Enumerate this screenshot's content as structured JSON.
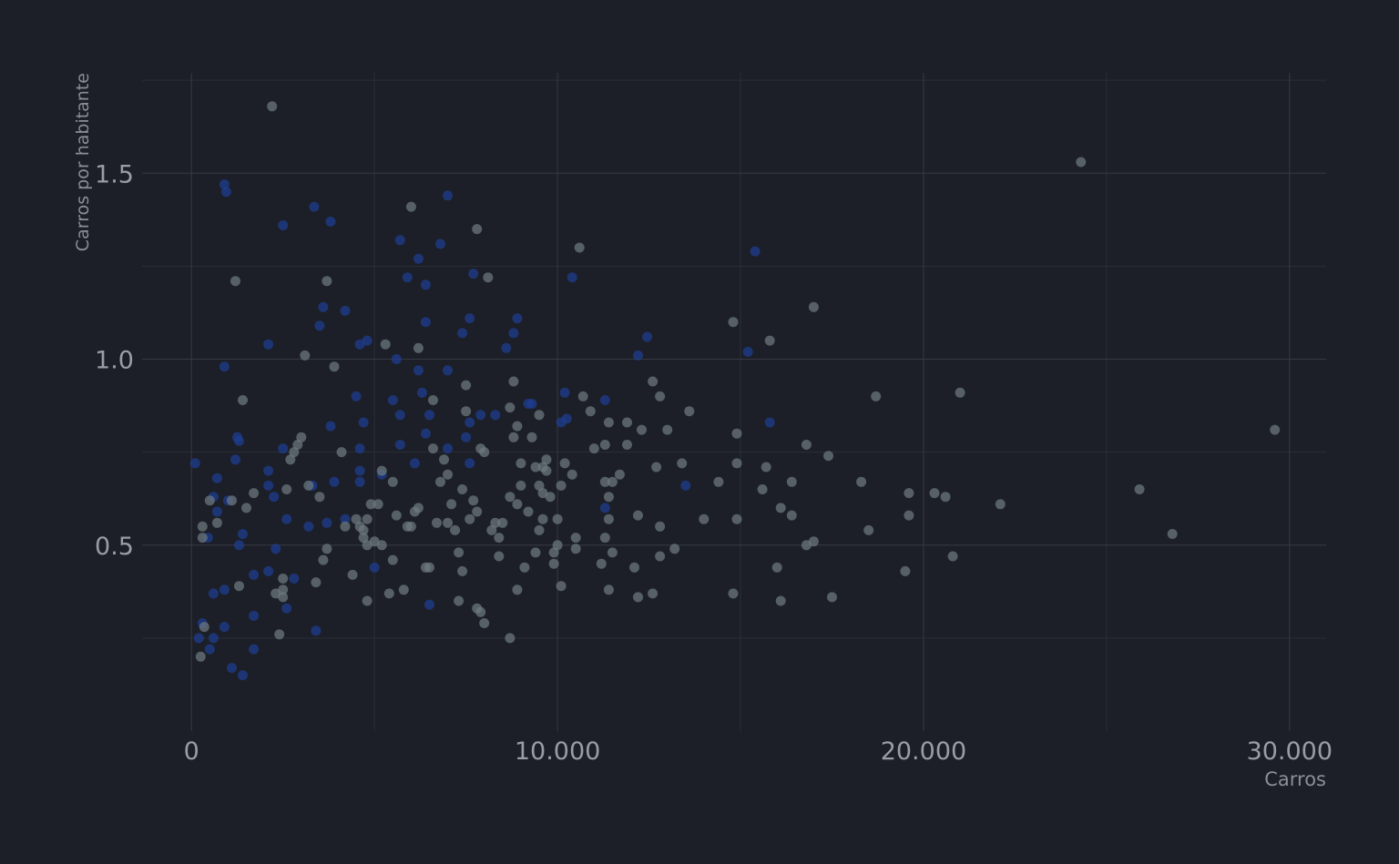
{
  "colors": {
    "background": "#1c1f27",
    "grid_major": "#363a44",
    "grid_minor": "#2a2e37",
    "axis_text": "#8b8e95",
    "tick_text": "#9a9da3",
    "point_gray": "#6e7a80",
    "point_blue": "#1f3f93"
  },
  "chart_data": {
    "type": "scatter",
    "title": "",
    "xlabel": "Carros",
    "ylabel": "Carros por habitante",
    "xlim": [
      -1350,
      31000
    ],
    "ylim": [
      0.0,
      1.77
    ],
    "x_ticks": [
      0,
      10000,
      20000,
      30000
    ],
    "x_tick_labels": [
      "0",
      "10.000",
      "20.000",
      "30.000"
    ],
    "y_ticks": [
      0.5,
      1.0,
      1.5
    ],
    "y_tick_labels": [
      "0.5",
      "1.0",
      "1.5"
    ],
    "grid": true,
    "legend": "none",
    "series": [
      {
        "color_key": "point_blue",
        "points": [
          [
            100,
            0.72
          ],
          [
            900,
            1.47
          ],
          [
            950,
            1.45
          ],
          [
            900,
            0.98
          ],
          [
            2500,
            1.36
          ],
          [
            3350,
            1.41
          ],
          [
            3800,
            1.37
          ],
          [
            3600,
            1.14
          ],
          [
            3500,
            1.09
          ],
          [
            4200,
            1.13
          ],
          [
            4600,
            1.04
          ],
          [
            4800,
            1.05
          ],
          [
            5600,
            1.0
          ],
          [
            6400,
            0.8
          ],
          [
            5700,
            1.32
          ],
          [
            5900,
            1.22
          ],
          [
            6200,
            1.27
          ],
          [
            6400,
            1.2
          ],
          [
            6400,
            1.1
          ],
          [
            7000,
            1.44
          ],
          [
            6800,
            1.31
          ],
          [
            7700,
            1.23
          ],
          [
            7600,
            1.11
          ],
          [
            7400,
            1.07
          ],
          [
            10400,
            1.22
          ],
          [
            15400,
            1.29
          ],
          [
            15200,
            1.02
          ],
          [
            12200,
            1.01
          ],
          [
            12450,
            1.06
          ],
          [
            15800,
            0.83
          ],
          [
            10200,
            0.91
          ],
          [
            10250,
            0.84
          ],
          [
            10100,
            0.83
          ],
          [
            11300,
            0.89
          ],
          [
            9200,
            0.88
          ],
          [
            9300,
            0.88
          ],
          [
            8900,
            1.11
          ],
          [
            8800,
            1.07
          ],
          [
            8600,
            1.03
          ],
          [
            8300,
            0.85
          ],
          [
            7900,
            0.85
          ],
          [
            7600,
            0.83
          ],
          [
            7500,
            0.79
          ],
          [
            7600,
            0.72
          ],
          [
            7000,
            0.97
          ],
          [
            7000,
            0.76
          ],
          [
            6200,
            0.97
          ],
          [
            6300,
            0.91
          ],
          [
            6500,
            0.85
          ],
          [
            6100,
            0.72
          ],
          [
            5700,
            0.85
          ],
          [
            5500,
            0.89
          ],
          [
            5700,
            0.77
          ],
          [
            5200,
            0.69
          ],
          [
            4500,
            0.9
          ],
          [
            4700,
            0.83
          ],
          [
            4600,
            0.76
          ],
          [
            4600,
            0.7
          ],
          [
            4600,
            0.67
          ],
          [
            3800,
            0.82
          ],
          [
            3900,
            0.67
          ],
          [
            2100,
            1.04
          ],
          [
            2500,
            0.76
          ],
          [
            1200,
            0.73
          ],
          [
            1250,
            0.79
          ],
          [
            1300,
            0.78
          ],
          [
            700,
            0.68
          ],
          [
            700,
            0.59
          ],
          [
            600,
            0.63
          ],
          [
            450,
            0.52
          ],
          [
            1300,
            0.5
          ],
          [
            1400,
            0.53
          ],
          [
            2100,
            0.7
          ],
          [
            2100,
            0.66
          ],
          [
            2250,
            0.63
          ],
          [
            2300,
            0.49
          ],
          [
            2600,
            0.57
          ],
          [
            3300,
            0.66
          ],
          [
            3200,
            0.55
          ],
          [
            3700,
            0.56
          ],
          [
            4200,
            0.57
          ],
          [
            5000,
            0.44
          ],
          [
            2100,
            0.43
          ],
          [
            1700,
            0.42
          ],
          [
            1700,
            0.31
          ],
          [
            2800,
            0.41
          ],
          [
            2600,
            0.33
          ],
          [
            3400,
            0.27
          ],
          [
            600,
            0.37
          ],
          [
            900,
            0.38
          ],
          [
            900,
            0.28
          ],
          [
            600,
            0.25
          ],
          [
            500,
            0.22
          ],
          [
            300,
            0.29
          ],
          [
            200,
            0.25
          ],
          [
            1100,
            0.17
          ],
          [
            1400,
            0.15
          ],
          [
            1700,
            0.22
          ],
          [
            6500,
            0.34
          ],
          [
            11300,
            0.6
          ],
          [
            13500,
            0.66
          ],
          [
            1000,
            0.62
          ]
        ]
      },
      {
        "color_key": "point_gray",
        "points": [
          [
            2200,
            1.68
          ],
          [
            24300,
            1.53
          ],
          [
            29600,
            0.81
          ],
          [
            26800,
            0.53
          ],
          [
            25900,
            0.65
          ],
          [
            22100,
            0.61
          ],
          [
            21000,
            0.91
          ],
          [
            20800,
            0.47
          ],
          [
            20600,
            0.63
          ],
          [
            20300,
            0.64
          ],
          [
            19600,
            0.64
          ],
          [
            19600,
            0.58
          ],
          [
            19500,
            0.43
          ],
          [
            18700,
            0.9
          ],
          [
            18500,
            0.54
          ],
          [
            18300,
            0.67
          ],
          [
            17500,
            0.36
          ],
          [
            17400,
            0.74
          ],
          [
            17000,
            1.14
          ],
          [
            17000,
            0.51
          ],
          [
            16800,
            0.77
          ],
          [
            16800,
            0.5
          ],
          [
            16400,
            0.67
          ],
          [
            16400,
            0.58
          ],
          [
            16100,
            0.6
          ],
          [
            16100,
            0.35
          ],
          [
            16000,
            0.44
          ],
          [
            15800,
            1.05
          ],
          [
            15700,
            0.71
          ],
          [
            15600,
            0.65
          ],
          [
            14900,
            0.8
          ],
          [
            14900,
            0.72
          ],
          [
            14900,
            0.57
          ],
          [
            14800,
            1.1
          ],
          [
            14800,
            0.37
          ],
          [
            14400,
            0.67
          ],
          [
            14000,
            0.57
          ],
          [
            13600,
            0.86
          ],
          [
            13400,
            0.72
          ],
          [
            13200,
            0.49
          ],
          [
            13000,
            0.81
          ],
          [
            12800,
            0.9
          ],
          [
            12800,
            0.55
          ],
          [
            12800,
            0.47
          ],
          [
            12700,
            0.71
          ],
          [
            12600,
            0.94
          ],
          [
            12600,
            0.37
          ],
          [
            12300,
            0.81
          ],
          [
            12200,
            0.58
          ],
          [
            12200,
            0.36
          ],
          [
            12100,
            0.44
          ],
          [
            11900,
            0.83
          ],
          [
            11900,
            0.77
          ],
          [
            11700,
            0.69
          ],
          [
            11500,
            0.67
          ],
          [
            11500,
            0.48
          ],
          [
            11400,
            0.83
          ],
          [
            11400,
            0.63
          ],
          [
            11400,
            0.57
          ],
          [
            11400,
            0.38
          ],
          [
            11300,
            0.77
          ],
          [
            11300,
            0.67
          ],
          [
            11300,
            0.52
          ],
          [
            11200,
            0.45
          ],
          [
            11000,
            0.76
          ],
          [
            10900,
            0.86
          ],
          [
            10700,
            0.9
          ],
          [
            10600,
            1.3
          ],
          [
            10500,
            0.52
          ],
          [
            10500,
            0.49
          ],
          [
            10400,
            0.69
          ],
          [
            10200,
            0.72
          ],
          [
            10100,
            0.66
          ],
          [
            10100,
            0.39
          ],
          [
            10000,
            0.57
          ],
          [
            10000,
            0.5
          ],
          [
            9900,
            0.48
          ],
          [
            9900,
            0.45
          ],
          [
            9800,
            0.63
          ],
          [
            9700,
            0.73
          ],
          [
            9700,
            0.7
          ],
          [
            9600,
            0.71
          ],
          [
            9600,
            0.64
          ],
          [
            9600,
            0.57
          ],
          [
            9500,
            0.85
          ],
          [
            9500,
            0.66
          ],
          [
            9500,
            0.54
          ],
          [
            9400,
            0.71
          ],
          [
            9400,
            0.48
          ],
          [
            9300,
            0.79
          ],
          [
            9200,
            0.59
          ],
          [
            9100,
            0.44
          ],
          [
            9000,
            0.72
          ],
          [
            9000,
            0.66
          ],
          [
            8900,
            0.82
          ],
          [
            8900,
            0.61
          ],
          [
            8900,
            0.38
          ],
          [
            8800,
            0.94
          ],
          [
            8800,
            0.79
          ],
          [
            8700,
            0.87
          ],
          [
            8700,
            0.63
          ],
          [
            8700,
            0.25
          ],
          [
            8500,
            0.56
          ],
          [
            8400,
            0.52
          ],
          [
            8400,
            0.47
          ],
          [
            8300,
            0.56
          ],
          [
            8200,
            0.54
          ],
          [
            8100,
            1.22
          ],
          [
            8000,
            0.75
          ],
          [
            8000,
            0.29
          ],
          [
            7900,
            0.76
          ],
          [
            7900,
            0.32
          ],
          [
            7800,
            1.35
          ],
          [
            7800,
            0.59
          ],
          [
            7800,
            0.33
          ],
          [
            7700,
            0.62
          ],
          [
            7600,
            0.57
          ],
          [
            7500,
            0.93
          ],
          [
            7500,
            0.86
          ],
          [
            7400,
            0.65
          ],
          [
            7400,
            0.43
          ],
          [
            7300,
            0.48
          ],
          [
            7300,
            0.35
          ],
          [
            7200,
            0.54
          ],
          [
            7100,
            0.61
          ],
          [
            7000,
            0.69
          ],
          [
            7000,
            0.56
          ],
          [
            6900,
            0.73
          ],
          [
            6800,
            0.67
          ],
          [
            6700,
            0.56
          ],
          [
            6600,
            0.89
          ],
          [
            6600,
            0.76
          ],
          [
            6500,
            0.44
          ],
          [
            6400,
            0.44
          ],
          [
            6200,
            0.6
          ],
          [
            6200,
            1.03
          ],
          [
            6100,
            0.59
          ],
          [
            6000,
            1.41
          ],
          [
            6000,
            0.55
          ],
          [
            5900,
            0.55
          ],
          [
            5800,
            0.38
          ],
          [
            5600,
            0.58
          ],
          [
            5500,
            0.67
          ],
          [
            5500,
            0.46
          ],
          [
            5400,
            0.37
          ],
          [
            5300,
            1.04
          ],
          [
            5200,
            0.7
          ],
          [
            5200,
            0.5
          ],
          [
            5100,
            0.61
          ],
          [
            5000,
            0.51
          ],
          [
            4900,
            0.61
          ],
          [
            4800,
            0.57
          ],
          [
            4800,
            0.5
          ],
          [
            4800,
            0.35
          ],
          [
            4700,
            0.54
          ],
          [
            4700,
            0.52
          ],
          [
            4600,
            0.55
          ],
          [
            4500,
            0.57
          ],
          [
            4400,
            0.42
          ],
          [
            4200,
            0.55
          ],
          [
            4100,
            0.75
          ],
          [
            3900,
            0.98
          ],
          [
            3700,
            1.21
          ],
          [
            3700,
            0.49
          ],
          [
            3600,
            0.46
          ],
          [
            3500,
            0.63
          ],
          [
            3400,
            0.4
          ],
          [
            3200,
            0.66
          ],
          [
            3100,
            1.01
          ],
          [
            3000,
            0.79
          ],
          [
            2900,
            0.77
          ],
          [
            2800,
            0.75
          ],
          [
            2700,
            0.73
          ],
          [
            2600,
            0.65
          ],
          [
            2500,
            0.41
          ],
          [
            2500,
            0.36
          ],
          [
            2500,
            0.38
          ],
          [
            2400,
            0.26
          ],
          [
            2300,
            0.37
          ],
          [
            1700,
            0.64
          ],
          [
            1500,
            0.6
          ],
          [
            1400,
            0.89
          ],
          [
            1300,
            0.39
          ],
          [
            1200,
            1.21
          ],
          [
            1100,
            0.62
          ],
          [
            700,
            0.56
          ],
          [
            500,
            0.62
          ],
          [
            300,
            0.52
          ],
          [
            300,
            0.55
          ],
          [
            250,
            0.2
          ],
          [
            350,
            0.28
          ]
        ]
      }
    ]
  }
}
